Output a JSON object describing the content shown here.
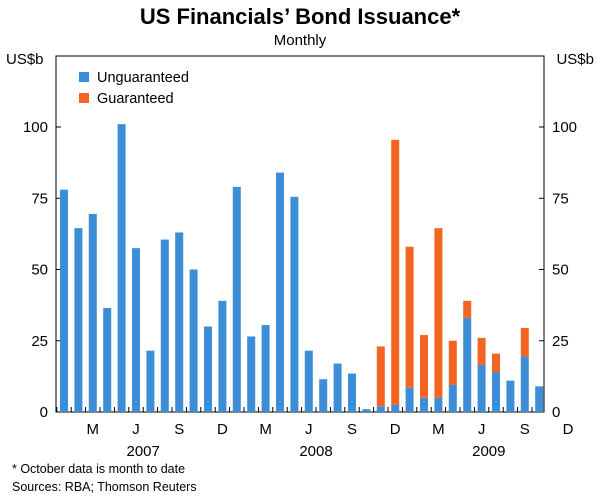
{
  "chart_data": {
    "type": "bar",
    "stacked": true,
    "title": "US Financials’ Bond Issuance*",
    "subtitle": "Monthly",
    "ylabel_left": "US$b",
    "ylabel_right": "US$b",
    "ylim": [
      0,
      100
    ],
    "yticks": [
      0,
      25,
      50,
      75,
      100
    ],
    "legend_position": "top-left",
    "grid": false,
    "categories": [
      "2007-01",
      "2007-02",
      "2007-03",
      "2007-04",
      "2007-05",
      "2007-06",
      "2007-07",
      "2007-08",
      "2007-09",
      "2007-10",
      "2007-11",
      "2007-12",
      "2008-01",
      "2008-02",
      "2008-03",
      "2008-04",
      "2008-05",
      "2008-06",
      "2008-07",
      "2008-08",
      "2008-09",
      "2008-10",
      "2008-11",
      "2008-12",
      "2009-01",
      "2009-02",
      "2009-03",
      "2009-04",
      "2009-05",
      "2009-06",
      "2009-07",
      "2009-08",
      "2009-09",
      "2009-10"
    ],
    "x_tick_labels": [
      "M",
      "J",
      "S",
      "D",
      "M",
      "J",
      "S",
      "D",
      "M",
      "J",
      "S",
      "D"
    ],
    "year_labels": [
      "2007",
      "2008",
      "2009"
    ],
    "series": [
      {
        "name": "Unguaranteed",
        "color": "#3c8fd6",
        "values": [
          78,
          64.5,
          69.5,
          36.5,
          101,
          57.5,
          21.5,
          60.5,
          63,
          50,
          30,
          39,
          79,
          26.5,
          30.5,
          84,
          75.5,
          21.5,
          11.5,
          17,
          13.5,
          1,
          2,
          2.5,
          8.5,
          5,
          5,
          9.5,
          33,
          16.5,
          14,
          11,
          19.5,
          9
        ]
      },
      {
        "name": "Guaranteed",
        "color": "#f26522",
        "values": [
          0,
          0,
          0,
          0,
          0,
          0,
          0,
          0,
          0,
          0,
          0,
          0,
          0,
          0,
          0,
          0,
          0,
          0,
          0,
          0,
          0,
          0,
          21,
          93,
          49.5,
          22,
          59.5,
          15.5,
          6,
          9.5,
          6.5,
          0,
          10,
          0
        ]
      }
    ]
  },
  "notes": {
    "footnote": "*   October data is month to date",
    "sources": "Sources: RBA; Thomson Reuters"
  }
}
